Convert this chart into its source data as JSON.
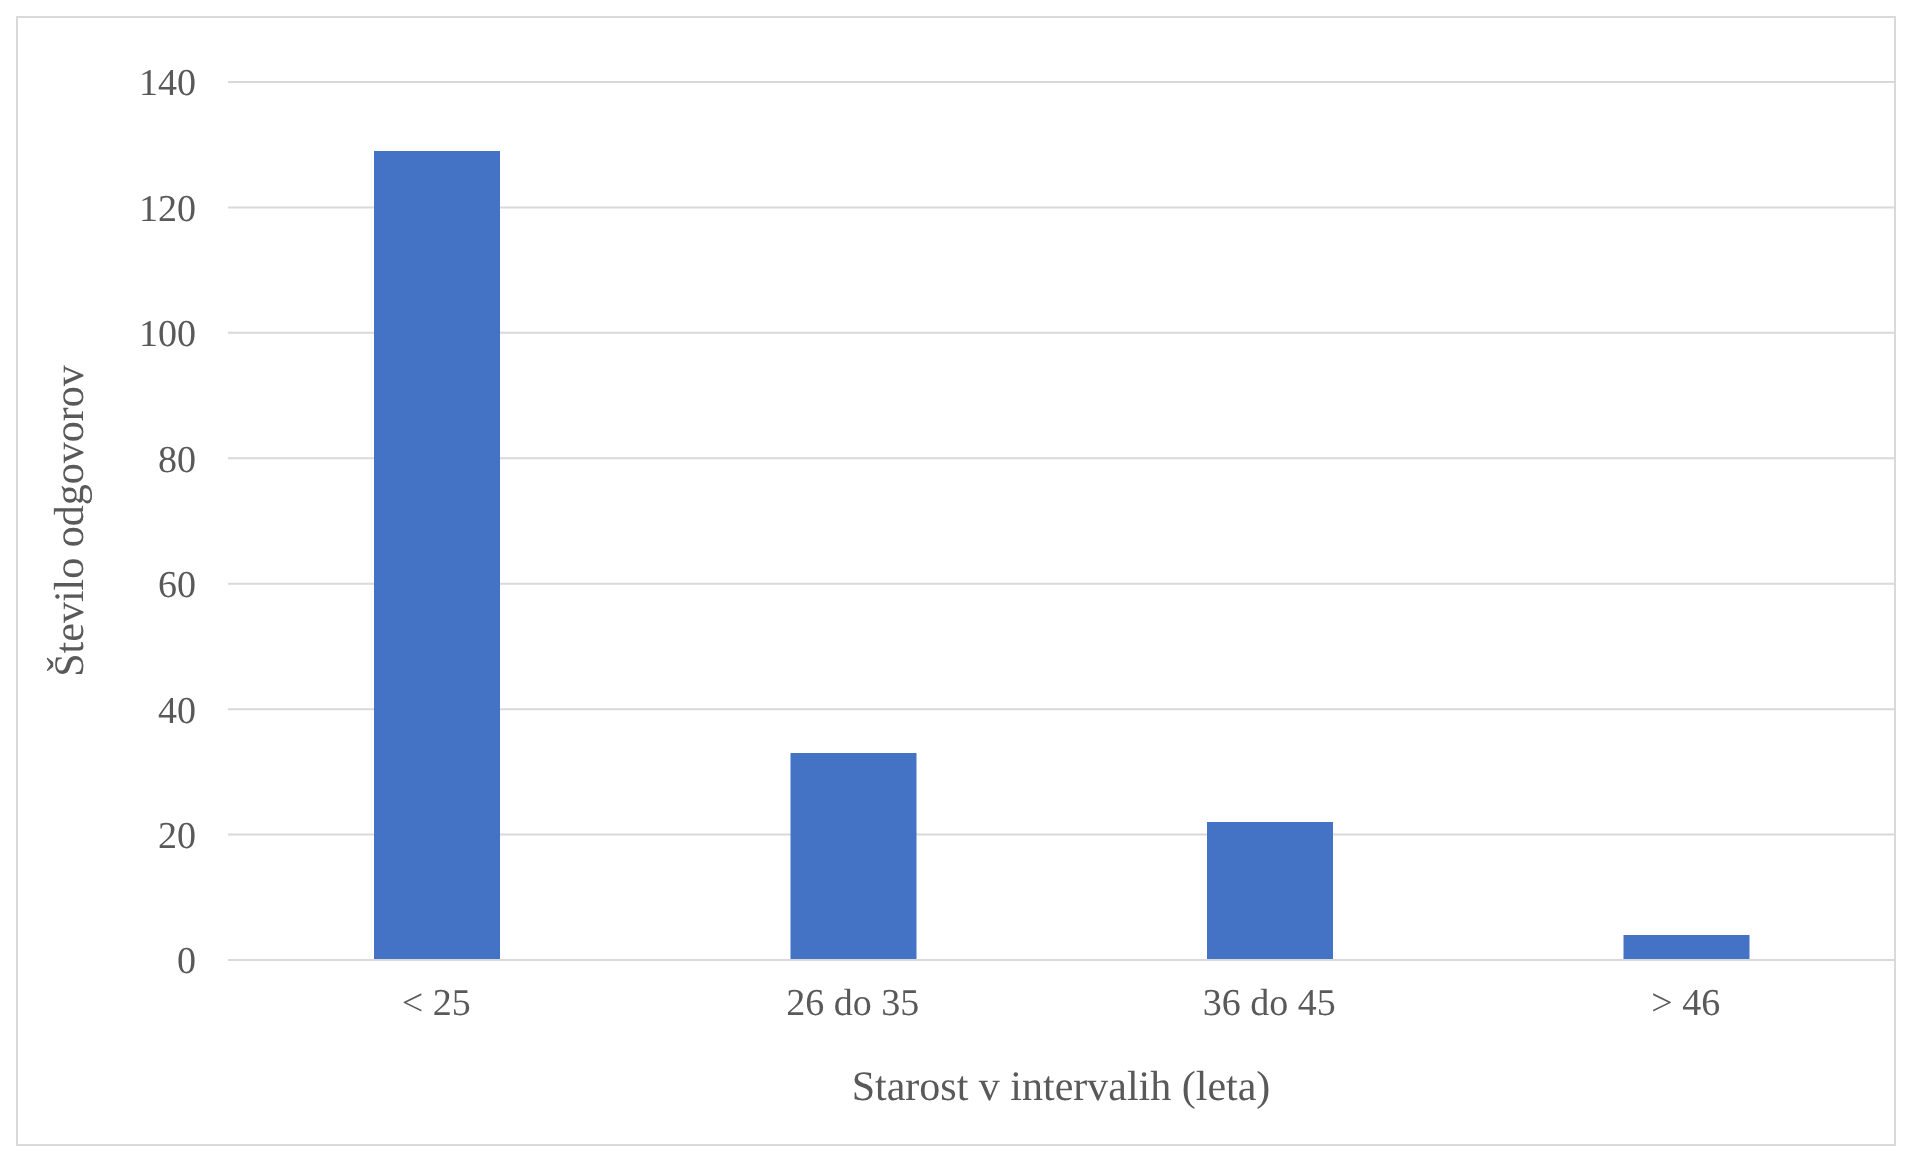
{
  "chart_data": {
    "type": "bar",
    "xlabel": "Starost v intervalih (leta)",
    "ylabel": "Število odgovorov",
    "categories": [
      "< 25",
      "26 do 35",
      "36 do 45",
      "> 46"
    ],
    "values": [
      129,
      33,
      22,
      4
    ],
    "color": "#4472c4",
    "ylim": [
      0,
      140
    ],
    "yticks": [
      0,
      20,
      40,
      60,
      80,
      100,
      120,
      140
    ],
    "grid": "y",
    "legend": false
  }
}
